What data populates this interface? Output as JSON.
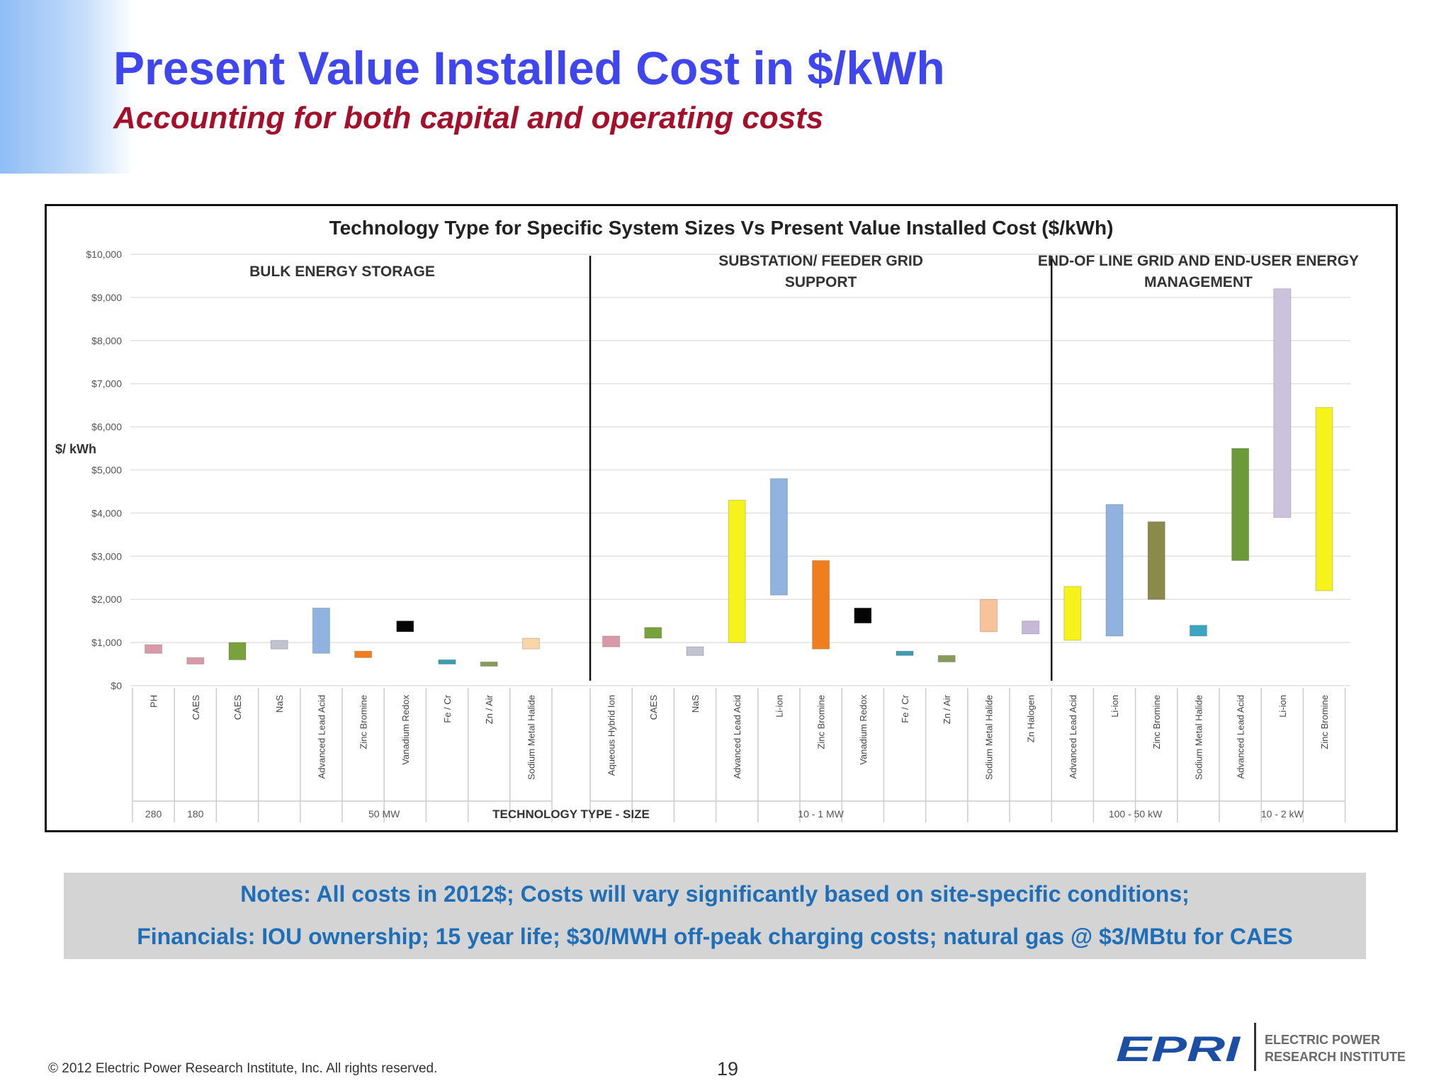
{
  "slide": {
    "title": "Present Value Installed Cost in $/kWh",
    "subtitle": "Accounting for both capital and operating costs",
    "notes": [
      "Notes:  All costs in 2012$; Costs will vary significantly based on site-specific conditions;",
      "Financials: IOU ownership; 15 year life;  $30/MWH off-peak charging costs; natural gas @ $3/MBtu for CAES"
    ],
    "copyright": "© 2012 Electric Power Research Institute, Inc. All rights reserved.",
    "page_number": "19",
    "logo": {
      "icon": "epri-logo",
      "mark": "EPRI",
      "name_line1": "ELECTRIC POWER",
      "name_line2": "RESEARCH INSTITUTE"
    }
  },
  "chart_data": {
    "type": "bar",
    "subtype": "floating-range",
    "title": "Technology Type for Specific System Sizes Vs Present Value Installed Cost ($/kWh)",
    "ylabel": "$/ kWh",
    "xlabel": "TECHNOLOGY TYPE - SIZE",
    "ylim": [
      0,
      10000
    ],
    "yticks": [
      "$0",
      "$1,000",
      "$2,000",
      "$3,000",
      "$4,000",
      "$5,000",
      "$6,000",
      "$7,000",
      "$8,000",
      "$9,000",
      "$10,000"
    ],
    "grid": true,
    "sections": [
      {
        "name": "BULK ENERGY STORAGE",
        "first": 0,
        "last": 9
      },
      {
        "name": "SUBSTATION/ FEEDER GRID SUPPORT",
        "first": 10,
        "last": 20
      },
      {
        "name": "END-OF LINE GRID AND END-USER ENERGY MANAGEMENT",
        "first": 21,
        "last": 27
      }
    ],
    "size_labels": [
      {
        "label": "280",
        "first": 0,
        "last": 0
      },
      {
        "label": "180",
        "first": 1,
        "last": 1
      },
      {
        "label": "50 MW",
        "first": 2,
        "last": 9
      },
      {
        "label": "10 - 1 MW",
        "first": 10,
        "last": 20
      },
      {
        "label": "100 - 50 kW",
        "first": 21,
        "last": 24
      },
      {
        "label": "10 - 2 kW",
        "first": 25,
        "last": 27
      }
    ],
    "categories": [
      "PH",
      "CAES",
      "CAES",
      "NaS",
      "Advanced Lead Acid",
      "Zinc Bromine",
      "Vanadium Redox",
      "Fe / Cr",
      "Zn / Air",
      "Sodium Metal Halide",
      "Aqueous Hybrid Ion",
      "CAES",
      "NaS",
      "Advanced Lead Acid",
      "Li-ion",
      "Zinc Bromine",
      "Vanadium Redox",
      "Fe / Cr",
      "Zn / Air",
      "Sodium Metal Halide",
      "Zn Halogen",
      "Advanced Lead Acid",
      "Li-ion",
      "Zinc Bromine",
      "Sodium Metal Halide",
      "Advanced Lead Acid",
      "Li-ion",
      "Zinc Bromine"
    ],
    "ranges": [
      [
        750,
        950
      ],
      [
        500,
        650
      ],
      [
        600,
        1000
      ],
      [
        850,
        1050
      ],
      [
        750,
        1800
      ],
      [
        650,
        800
      ],
      [
        1250,
        1500
      ],
      [
        500,
        600
      ],
      [
        450,
        550
      ],
      [
        850,
        1100
      ],
      [
        900,
        1150
      ],
      [
        1100,
        1350
      ],
      [
        700,
        900
      ],
      [
        1000,
        4300
      ],
      [
        2100,
        4800
      ],
      [
        850,
        2900
      ],
      [
        1450,
        1800
      ],
      [
        700,
        800
      ],
      [
        550,
        700
      ],
      [
        1250,
        2000
      ],
      [
        1200,
        1500
      ],
      [
        1050,
        2300
      ],
      [
        1150,
        4200
      ],
      [
        2000,
        3800
      ],
      [
        1150,
        1400
      ],
      [
        2900,
        5500
      ],
      [
        3900,
        9200
      ],
      [
        2200,
        6450
      ]
    ],
    "colors": [
      "#d89aa8",
      "#d89aa8",
      "#7aa23c",
      "#c3c3d0",
      "#8fb2df",
      "#f07e1e",
      "#050505",
      "#3c9cb2",
      "#8a9a5a",
      "#f7d6a8",
      "#d89aa8",
      "#7aa23c",
      "#c3c3d0",
      "#f5f21c",
      "#8fb2df",
      "#f07e1e",
      "#050505",
      "#3c9cb2",
      "#8a9a5a",
      "#f7c49a",
      "#c8b8d8",
      "#f5f21c",
      "#8fb2df",
      "#8a8a4a",
      "#3ca6c2",
      "#6c9a38",
      "#cdc2dc",
      "#f5f21c"
    ]
  }
}
